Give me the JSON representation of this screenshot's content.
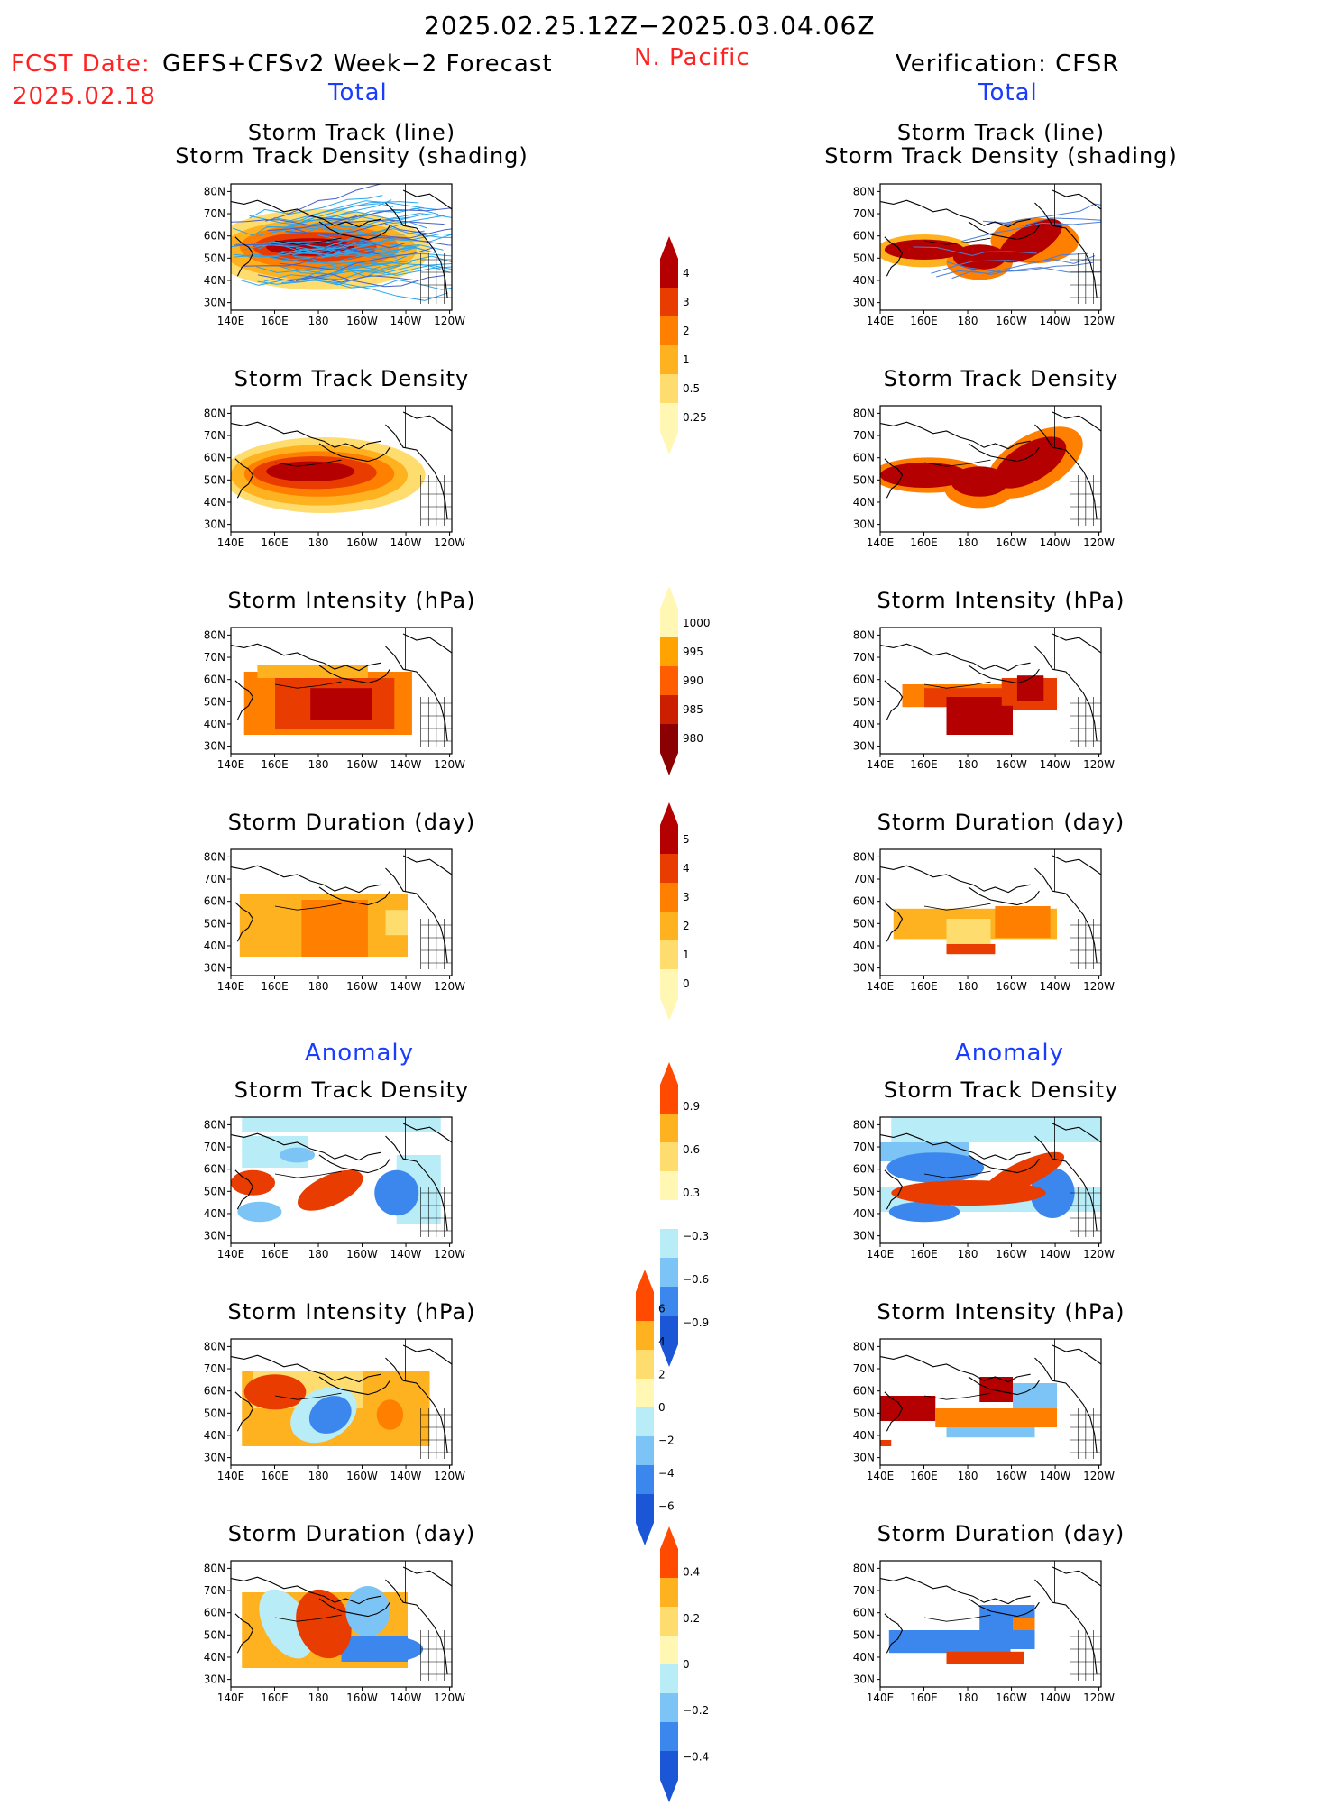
{
  "header": {
    "period": "2025.02.25.12Z−2025.03.04.06Z",
    "fcst_label": "FCST Date:",
    "model": "GEFS+CFSv2 Week−2 Forecast",
    "fcst_date": "2025.02.18",
    "region": "N. Pacific",
    "verification": "Verification: CFSR"
  },
  "sections": {
    "total_left": "Total",
    "total_right": "Total",
    "anom_left": "Anomaly",
    "anom_right": "Anomaly"
  },
  "panel_titles": {
    "track_line": "Storm Track (line)",
    "track_shading": "Storm Track Density (shading)",
    "density": "Storm Track Density",
    "intensity": "Storm Intensity (hPa)",
    "duration": "Storm Duration (day)"
  },
  "axes": {
    "lat": [
      "80N",
      "70N",
      "60N",
      "50N",
      "40N",
      "30N"
    ],
    "lon": [
      "140E",
      "160E",
      "180",
      "160W",
      "140W",
      "120W"
    ]
  },
  "colorbars": {
    "density_total": [
      "4",
      "3",
      "2",
      "1",
      "0.5",
      "0.25"
    ],
    "intensity_total": [
      "1000",
      "995",
      "990",
      "985",
      "980"
    ],
    "duration_total": [
      "5",
      "4",
      "3",
      "2",
      "1",
      "0"
    ],
    "density_anom": [
      "0.9",
      "0.6",
      "0.3",
      "−0.3",
      "−0.6",
      "−0.9"
    ],
    "intensity_anom": [
      "6",
      "4",
      "2",
      "0",
      "−2",
      "−4",
      "−6"
    ],
    "duration_anom": [
      "0.4",
      "0.2",
      "0",
      "−0.2",
      "−0.4"
    ]
  },
  "colors": {
    "red_title": "#ff2222",
    "blue_title": "#1a3cff",
    "warm": [
      "#fff7b3",
      "#ffdc6e",
      "#ffb21f",
      "#ff7f00",
      "#e83c00",
      "#b40000"
    ],
    "cool": [
      "#b8ecf7",
      "#7cc4f5",
      "#3b87ee",
      "#1a56d6"
    ]
  }
}
